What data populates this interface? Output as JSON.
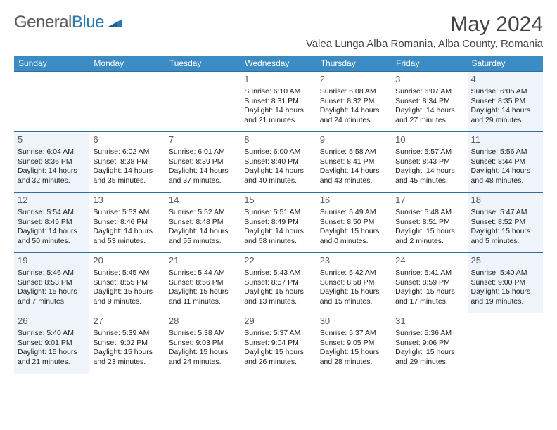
{
  "brand": {
    "part1": "General",
    "part2": "Blue"
  },
  "title": "May 2024",
  "location": "Valea Lunga Alba Romania, Alba County, Romania",
  "weekdays": [
    "Sunday",
    "Monday",
    "Tuesday",
    "Wednesday",
    "Thursday",
    "Friday",
    "Saturday"
  ],
  "colors": {
    "header_bg": "#3b8bc4",
    "header_fg": "#ffffff",
    "weekend_bg": "#eef4f9",
    "border": "#2f6f9f",
    "text": "#222222",
    "title": "#444444",
    "brand_gray": "#5a5a5a",
    "brand_blue": "#2a7ab0"
  },
  "layout": {
    "cols": 7,
    "rows": 5,
    "col_width_pct": 14.28
  },
  "weeks": [
    [
      null,
      null,
      null,
      {
        "n": "1",
        "sr": "6:10 AM",
        "ss": "8:31 PM",
        "dl": "14 hours and 21 minutes."
      },
      {
        "n": "2",
        "sr": "6:08 AM",
        "ss": "8:32 PM",
        "dl": "14 hours and 24 minutes."
      },
      {
        "n": "3",
        "sr": "6:07 AM",
        "ss": "8:34 PM",
        "dl": "14 hours and 27 minutes."
      },
      {
        "n": "4",
        "sr": "6:05 AM",
        "ss": "8:35 PM",
        "dl": "14 hours and 29 minutes."
      }
    ],
    [
      {
        "n": "5",
        "sr": "6:04 AM",
        "ss": "8:36 PM",
        "dl": "14 hours and 32 minutes."
      },
      {
        "n": "6",
        "sr": "6:02 AM",
        "ss": "8:38 PM",
        "dl": "14 hours and 35 minutes."
      },
      {
        "n": "7",
        "sr": "6:01 AM",
        "ss": "8:39 PM",
        "dl": "14 hours and 37 minutes."
      },
      {
        "n": "8",
        "sr": "6:00 AM",
        "ss": "8:40 PM",
        "dl": "14 hours and 40 minutes."
      },
      {
        "n": "9",
        "sr": "5:58 AM",
        "ss": "8:41 PM",
        "dl": "14 hours and 43 minutes."
      },
      {
        "n": "10",
        "sr": "5:57 AM",
        "ss": "8:43 PM",
        "dl": "14 hours and 45 minutes."
      },
      {
        "n": "11",
        "sr": "5:56 AM",
        "ss": "8:44 PM",
        "dl": "14 hours and 48 minutes."
      }
    ],
    [
      {
        "n": "12",
        "sr": "5:54 AM",
        "ss": "8:45 PM",
        "dl": "14 hours and 50 minutes."
      },
      {
        "n": "13",
        "sr": "5:53 AM",
        "ss": "8:46 PM",
        "dl": "14 hours and 53 minutes."
      },
      {
        "n": "14",
        "sr": "5:52 AM",
        "ss": "8:48 PM",
        "dl": "14 hours and 55 minutes."
      },
      {
        "n": "15",
        "sr": "5:51 AM",
        "ss": "8:49 PM",
        "dl": "14 hours and 58 minutes."
      },
      {
        "n": "16",
        "sr": "5:49 AM",
        "ss": "8:50 PM",
        "dl": "15 hours and 0 minutes."
      },
      {
        "n": "17",
        "sr": "5:48 AM",
        "ss": "8:51 PM",
        "dl": "15 hours and 2 minutes."
      },
      {
        "n": "18",
        "sr": "5:47 AM",
        "ss": "8:52 PM",
        "dl": "15 hours and 5 minutes."
      }
    ],
    [
      {
        "n": "19",
        "sr": "5:46 AM",
        "ss": "8:53 PM",
        "dl": "15 hours and 7 minutes."
      },
      {
        "n": "20",
        "sr": "5:45 AM",
        "ss": "8:55 PM",
        "dl": "15 hours and 9 minutes."
      },
      {
        "n": "21",
        "sr": "5:44 AM",
        "ss": "8:56 PM",
        "dl": "15 hours and 11 minutes."
      },
      {
        "n": "22",
        "sr": "5:43 AM",
        "ss": "8:57 PM",
        "dl": "15 hours and 13 minutes."
      },
      {
        "n": "23",
        "sr": "5:42 AM",
        "ss": "8:58 PM",
        "dl": "15 hours and 15 minutes."
      },
      {
        "n": "24",
        "sr": "5:41 AM",
        "ss": "8:59 PM",
        "dl": "15 hours and 17 minutes."
      },
      {
        "n": "25",
        "sr": "5:40 AM",
        "ss": "9:00 PM",
        "dl": "15 hours and 19 minutes."
      }
    ],
    [
      {
        "n": "26",
        "sr": "5:40 AM",
        "ss": "9:01 PM",
        "dl": "15 hours and 21 minutes."
      },
      {
        "n": "27",
        "sr": "5:39 AM",
        "ss": "9:02 PM",
        "dl": "15 hours and 23 minutes."
      },
      {
        "n": "28",
        "sr": "5:38 AM",
        "ss": "9:03 PM",
        "dl": "15 hours and 24 minutes."
      },
      {
        "n": "29",
        "sr": "5:37 AM",
        "ss": "9:04 PM",
        "dl": "15 hours and 26 minutes."
      },
      {
        "n": "30",
        "sr": "5:37 AM",
        "ss": "9:05 PM",
        "dl": "15 hours and 28 minutes."
      },
      {
        "n": "31",
        "sr": "5:36 AM",
        "ss": "9:06 PM",
        "dl": "15 hours and 29 minutes."
      },
      null
    ]
  ],
  "labels": {
    "sunrise": "Sunrise:",
    "sunset": "Sunset:",
    "daylight": "Daylight:"
  }
}
